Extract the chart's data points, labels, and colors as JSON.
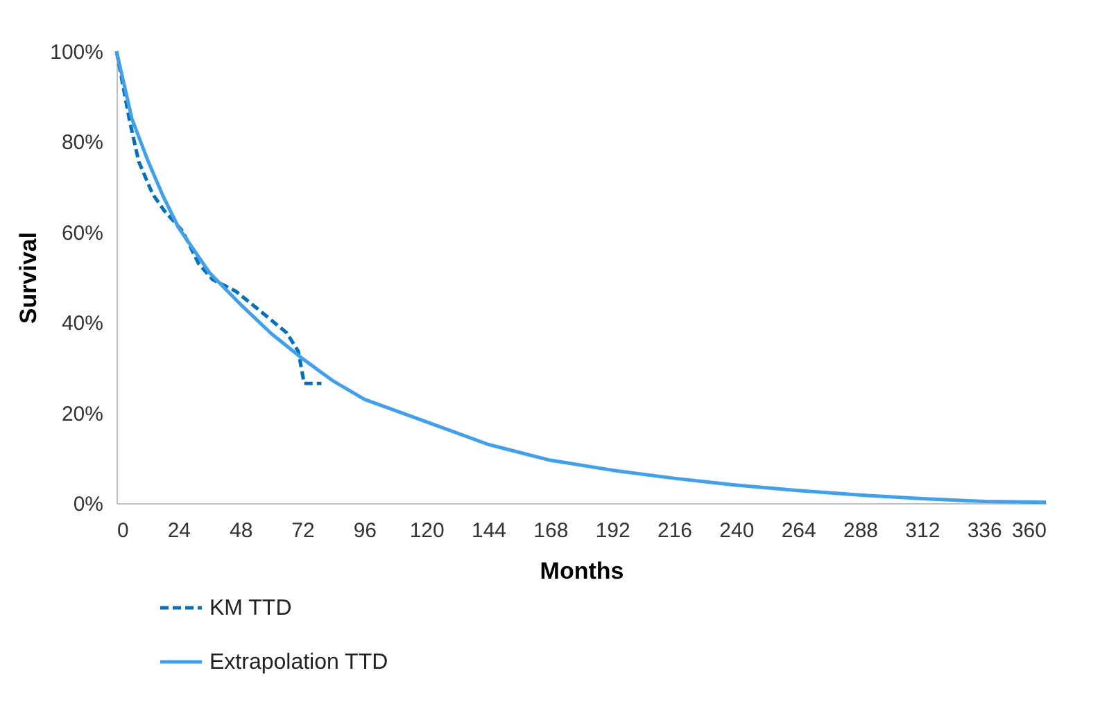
{
  "chart_data": {
    "type": "line",
    "xlabel": "Months",
    "ylabel": "Survival",
    "legend": "bottom left",
    "grid": false,
    "marker": "none",
    "xlim": [
      0,
      360
    ],
    "xticks": [
      0,
      24,
      48,
      72,
      96,
      120,
      144,
      168,
      192,
      216,
      240,
      264,
      288,
      312,
      336,
      360
    ],
    "ylim": [
      0,
      100
    ],
    "yticks": [
      {
        "value": 0,
        "label": "0%"
      },
      {
        "value": 20,
        "label": "20%"
      },
      {
        "value": 40,
        "label": "40%"
      },
      {
        "value": 60,
        "label": "60%"
      },
      {
        "value": 80,
        "label": "80%"
      },
      {
        "value": 100,
        "label": "100%"
      }
    ],
    "series": [
      {
        "name": "KM TTD",
        "color": "#0070c0",
        "line_style": "dashed",
        "x": [
          0,
          5,
          8.6,
          14,
          18.4,
          25.6,
          31.8,
          37.2,
          46.2,
          55.1,
          65.9,
          70.4,
          72.7,
          79.4
        ],
        "values": [
          100,
          84.8,
          75.6,
          68.4,
          64.8,
          60.2,
          53,
          49.5,
          46.9,
          42.8,
          37.7,
          33.6,
          26.5,
          26.5
        ]
      },
      {
        "name": "Extrapolation TTD",
        "color": "#3ea0f0",
        "line_style": "solid",
        "x": [
          0,
          6,
          12,
          18,
          24,
          36,
          48,
          60,
          72,
          84,
          96,
          120,
          144,
          168,
          192,
          216,
          240,
          264,
          288,
          312,
          336,
          360
        ],
        "values": [
          100,
          85,
          76,
          68,
          61,
          51,
          44,
          37.5,
          32,
          27,
          23,
          18,
          13,
          9.5,
          7.3,
          5.5,
          4,
          2.8,
          1.8,
          1,
          0.4,
          0.2
        ]
      }
    ]
  }
}
